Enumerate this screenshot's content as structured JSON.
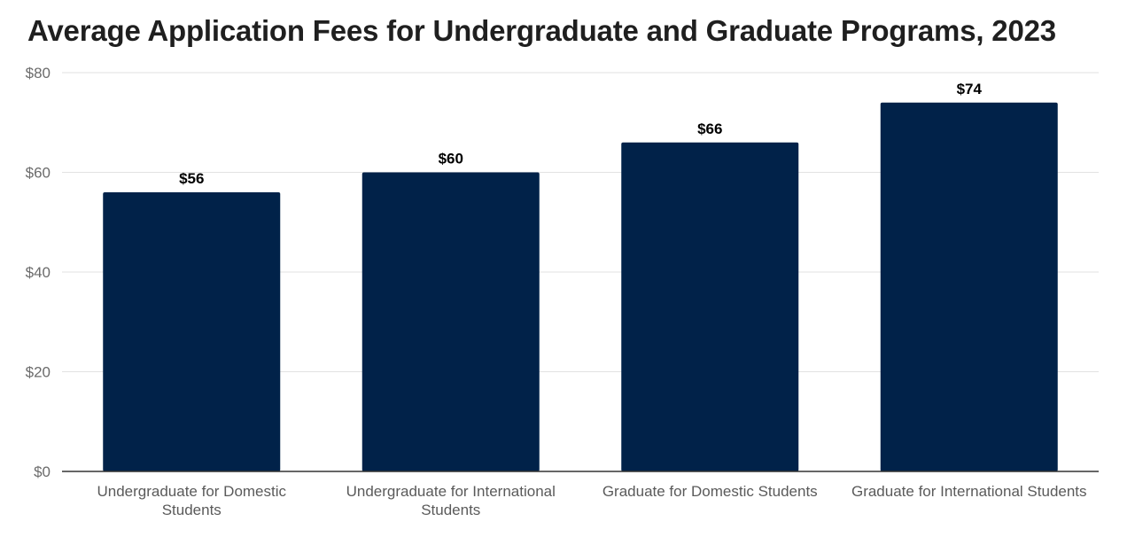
{
  "chart_data": {
    "type": "bar",
    "title": "Average Application Fees for Undergraduate and Graduate Programs, 2023",
    "categories": [
      [
        "Undergraduate for Domestic",
        "Students"
      ],
      [
        "Undergraduate for International",
        "Students"
      ],
      [
        "Graduate for Domestic Students"
      ],
      [
        "Graduate for International Students"
      ]
    ],
    "values": [
      56,
      60,
      66,
      74
    ],
    "data_labels": [
      "$56",
      "$60",
      "$66",
      "$74"
    ],
    "ylim": [
      0,
      80
    ],
    "yticks": [
      0,
      20,
      40,
      60,
      80
    ],
    "ytick_labels": [
      "$0",
      "$20",
      "$40",
      "$60",
      "$80"
    ],
    "xlabel": "",
    "ylabel": "",
    "grid": true,
    "bar_color": "#012249",
    "grid_color": "#e2e2e2",
    "axis_color": "#333333"
  }
}
